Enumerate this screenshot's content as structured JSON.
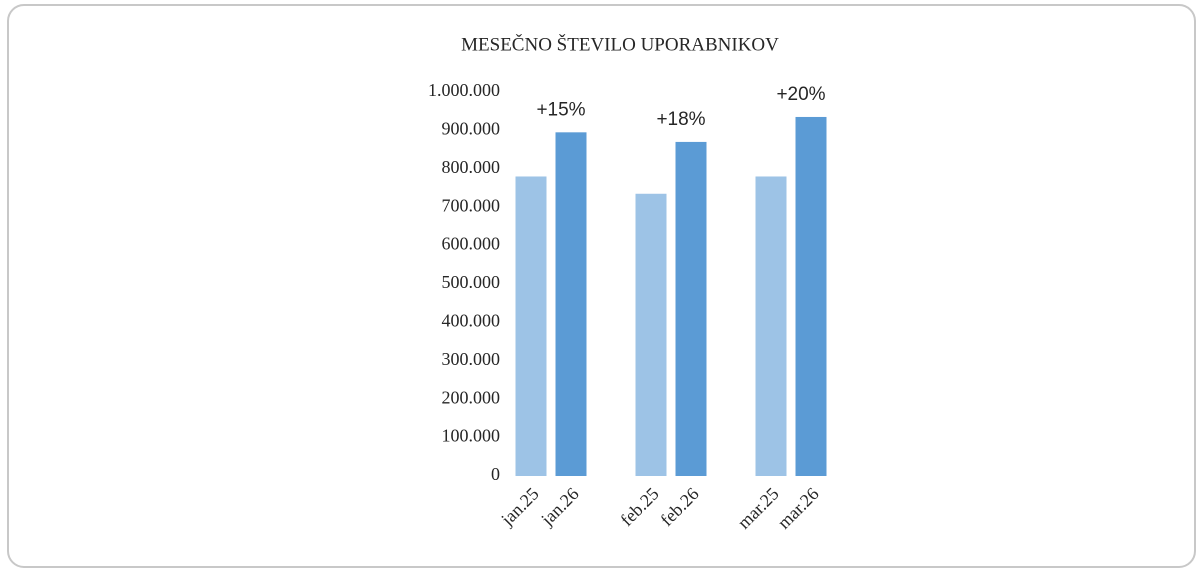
{
  "chart_data": {
    "type": "bar",
    "title": "MESEČNO ŠTEVILO UPORABNIKOV",
    "categories": [
      "jan.25",
      "jan.26",
      null,
      "feb.25",
      "feb.26",
      null,
      "mar.25",
      "mar.26"
    ],
    "values": [
      780000,
      895000,
      null,
      735000,
      870000,
      null,
      780000,
      935000
    ],
    "colors": [
      "#9dc3e6",
      "#5b9bd5",
      null,
      "#9dc3e6",
      "#5b9bd5",
      null,
      "#9dc3e6",
      "#5b9bd5"
    ],
    "ylim": [
      0,
      1000000
    ],
    "yticks": [
      0,
      {
        "value": 100000,
        "label": "100.000"
      },
      {
        "value": 200000,
        "label": "200.000"
      },
      {
        "value": 300000,
        "label": "300.000"
      },
      {
        "value": 400000,
        "label": "400.000"
      },
      {
        "value": 500000,
        "label": "500.000"
      },
      {
        "value": 600000,
        "label": "600.000"
      },
      {
        "value": 700000,
        "label": "700.000"
      },
      {
        "value": 800000,
        "label": "800.000"
      },
      {
        "value": 900000,
        "label": "900.000"
      },
      {
        "value": 1000000,
        "label": "1.000.000"
      }
    ],
    "grid": false,
    "annotations": [
      {
        "text": "+15%",
        "category": "jan.26"
      },
      {
        "text": "+18%",
        "category": "feb.26"
      },
      {
        "text": "+20%",
        "category": "mar.26"
      }
    ]
  }
}
